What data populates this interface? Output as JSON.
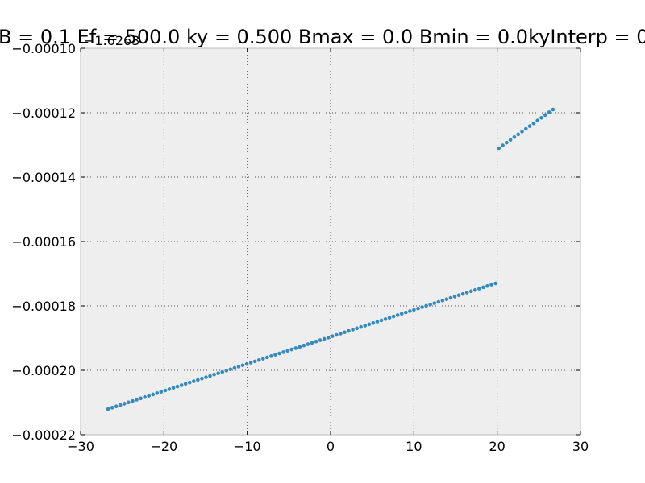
{
  "chart_data": {
    "type": "scatter",
    "title": "B = 0.1 Ef = 500.0 ky = 0.500 Bmax = 0.0 Bmin = 0.0kyInterp = 0",
    "y_offset_label": "−1.6263",
    "xlabel": "",
    "ylabel": "",
    "xlim": [
      -30,
      30
    ],
    "ylim": [
      -0.00022,
      -0.0001
    ],
    "x_ticks": [
      -30,
      -20,
      -10,
      0,
      10,
      20,
      30
    ],
    "x_tick_labels": [
      "−30",
      "−20",
      "−10",
      "0",
      "10",
      "20",
      "30"
    ],
    "y_ticks": [
      -0.00022,
      -0.0002,
      -0.00018,
      -0.00016,
      -0.00014,
      -0.00012,
      -0.0001
    ],
    "y_tick_labels": [
      "−0.00022",
      "−0.00020",
      "−0.00018",
      "−0.00016",
      "−0.00014",
      "−0.00012",
      "−0.00010"
    ],
    "grid": true,
    "legend": "none",
    "colors": {
      "marker": "#348ABD",
      "axes_bg": "#EEEEEE",
      "grid": "#555555",
      "frame": "#BBBBBB"
    },
    "series": [
      {
        "segments": [
          {
            "x_start": -26.7,
            "x_end": 19.8,
            "y_start": -0.000212,
            "y_end": -0.000173,
            "count": 96
          },
          {
            "x_start": 20.2,
            "x_end": 26.7,
            "y_start": -0.000131,
            "y_end": -0.000119,
            "count": 15
          }
        ]
      }
    ]
  }
}
